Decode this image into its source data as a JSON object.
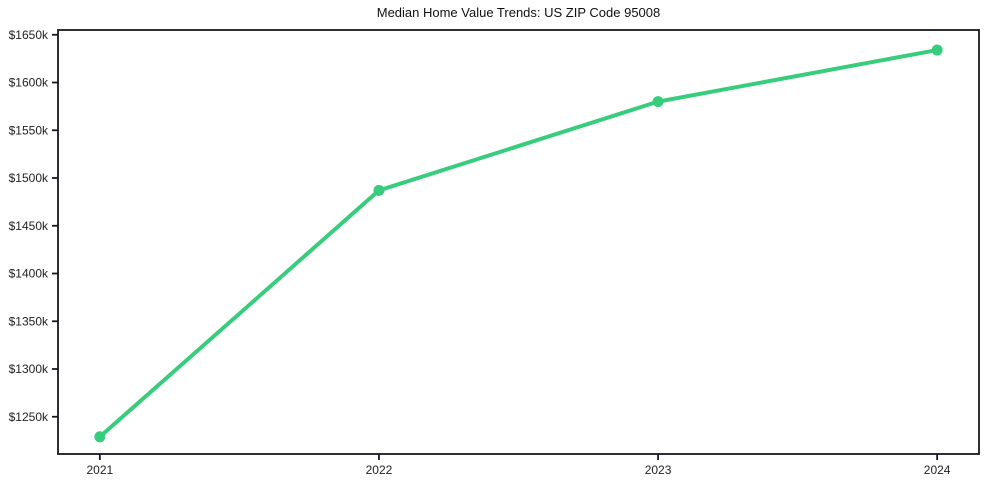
{
  "chart_data": {
    "type": "line",
    "title": "Median Home Value Trends: US ZIP Code 95008",
    "x": [
      2021,
      2022,
      2023,
      2024
    ],
    "x_tick_labels": [
      "2021",
      "2022",
      "2023",
      "2024"
    ],
    "y_ticks": [
      1250,
      1300,
      1350,
      1400,
      1450,
      1500,
      1550,
      1600,
      1650
    ],
    "y_tick_labels": [
      "$1250k",
      "$1300k",
      "$1350k",
      "$1400k",
      "$1450k",
      "$1500k",
      "$1550k",
      "$1600k",
      "$1650k"
    ],
    "series": [
      {
        "name": "Median Home Value",
        "values": [
          1229,
          1487,
          1580,
          1634
        ]
      }
    ],
    "xlabel": "",
    "ylabel": "",
    "xlim": [
      2020.85,
      2024.15
    ],
    "ylim": [
      1211,
      1655
    ],
    "grid": false,
    "legend_position": "none",
    "line_color": "#37cd7d",
    "marker": "circle",
    "axis_color": "#17171f",
    "tick_label_color": "#222222",
    "title_color": "#111111",
    "background_color": "#ffffff"
  }
}
